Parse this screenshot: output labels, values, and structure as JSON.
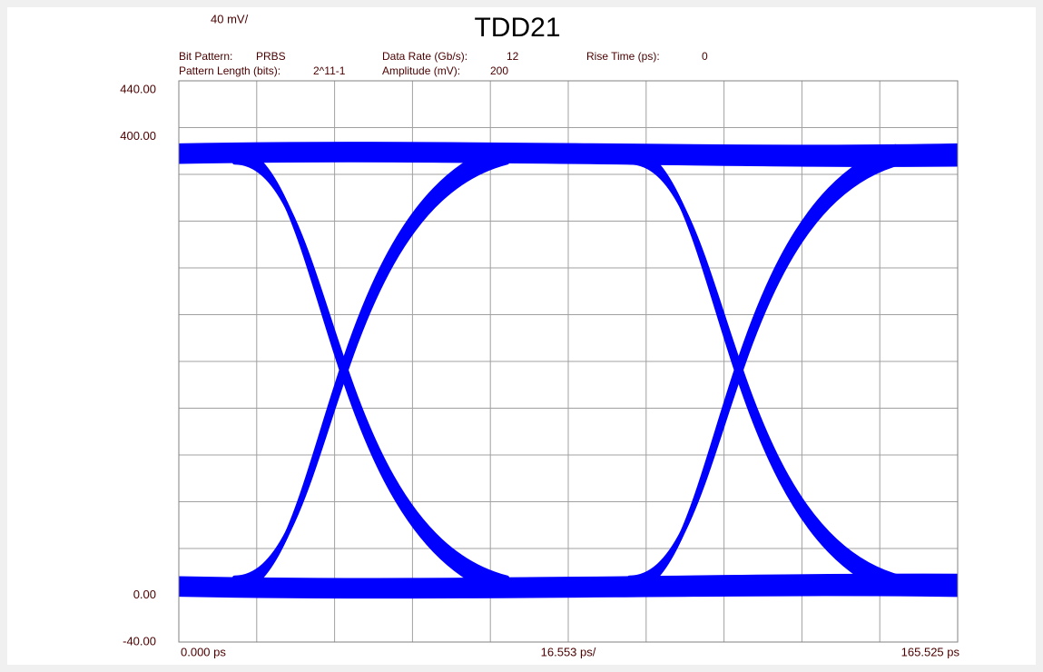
{
  "chart_data": {
    "type": "eye",
    "title": "TDD21",
    "y_scale_label": "40 mV/",
    "x_scale_label": "16.553 ps/",
    "info": [
      {
        "label": "Bit Pattern:",
        "value": "PRBS"
      },
      {
        "label": "Pattern Length (bits):",
        "value": "2^11-1"
      },
      {
        "label": "Data Rate (Gb/s):",
        "value": "12"
      },
      {
        "label": "Amplitude (mV):",
        "value": "200"
      },
      {
        "label": "Rise Time (ps):",
        "value": "0"
      }
    ],
    "color": "#0000ff",
    "ylim": [
      -40,
      440
    ],
    "yticks": [
      {
        "value": 440,
        "label": "440.00"
      },
      {
        "value": 400,
        "label": "400.00"
      },
      {
        "value": 0,
        "label": "0.00"
      },
      {
        "value": -40,
        "label": "-40.00"
      }
    ],
    "xlim": [
      0,
      165.525
    ],
    "xticks": [
      {
        "value": 0,
        "label": "0.000 ps"
      },
      {
        "value": 165.525,
        "label": "165.525 ps"
      }
    ],
    "xgrid": [
      0,
      16.5525,
      33.105,
      49.6575,
      66.21,
      82.7625,
      99.315,
      115.8675,
      132.42,
      148.9725,
      165.525
    ],
    "ygrid": [
      -40,
      0,
      40,
      80,
      120,
      160,
      200,
      240,
      280,
      320,
      360,
      400,
      440
    ],
    "grid": true
  }
}
